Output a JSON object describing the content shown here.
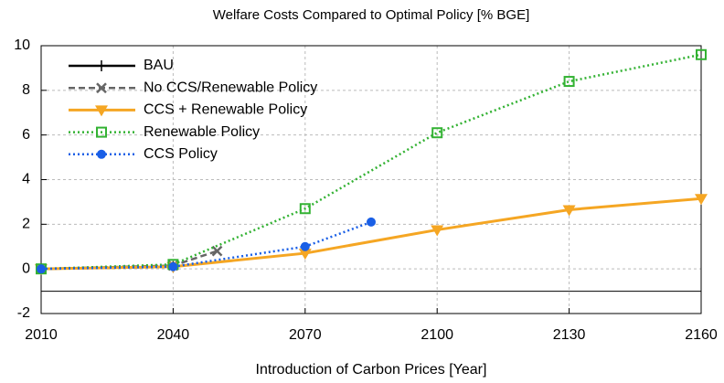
{
  "chart_data": {
    "type": "line",
    "title": "Welfare Costs Compared to Optimal Policy [% BGE]",
    "x_label": "Introduction of Carbon Prices [Year]",
    "xlim": [
      2010,
      2160
    ],
    "xticks": [
      2010,
      2040,
      2070,
      2100,
      2130,
      2160
    ],
    "ylim": [
      -2,
      10
    ],
    "yticks": [
      -2,
      0,
      2,
      4,
      6,
      8,
      10
    ],
    "grid": true,
    "legend": "top-left",
    "reference_line": -1,
    "series": [
      {
        "name": "BAU",
        "color": "#000000",
        "dash": "solid",
        "marker": "plus",
        "x": [
          2010,
          2040
        ],
        "values": [
          0,
          0.1
        ]
      },
      {
        "name": "No CCS/Renewable Policy",
        "color": "#666666",
        "dash": "dashed",
        "marker": "cross",
        "x": [
          2010,
          2040,
          2050
        ],
        "values": [
          0,
          0.15,
          0.8
        ]
      },
      {
        "name": "CCS + Renewable Policy",
        "color": "#f5a623",
        "dash": "solid",
        "marker": "triangle-down",
        "x": [
          2010,
          2040,
          2070,
          2100,
          2130,
          2160
        ],
        "values": [
          0,
          0.1,
          0.7,
          1.75,
          2.65,
          3.15
        ]
      },
      {
        "name": "Renewable Policy",
        "color": "#33b233",
        "dash": "dotted",
        "marker": "square",
        "x": [
          2010,
          2040,
          2070,
          2100,
          2130,
          2160
        ],
        "values": [
          0,
          0.2,
          2.7,
          6.1,
          8.4,
          9.6
        ]
      },
      {
        "name": "CCS Policy",
        "color": "#1a5fe6",
        "dash": "dotted",
        "marker": "circle",
        "x": [
          2010,
          2040,
          2070,
          2085
        ],
        "values": [
          0,
          0.1,
          1.0,
          2.1
        ]
      }
    ]
  }
}
